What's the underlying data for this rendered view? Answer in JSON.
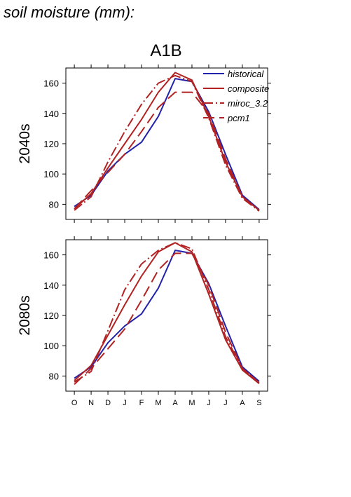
{
  "page": {
    "title": "soil moisture (mm):"
  },
  "colors": {
    "historical": "#2222aa",
    "projection": "#b22222",
    "axis": "#000000"
  },
  "chart_data": {
    "type": "line",
    "scenario": "A1B",
    "months": [
      "O",
      "N",
      "D",
      "J",
      "F",
      "M",
      "A",
      "M",
      "J",
      "J",
      "A",
      "S"
    ],
    "ylim": [
      70,
      170
    ],
    "yticks": [
      80,
      100,
      120,
      140,
      160
    ],
    "grid": false,
    "legend_placement": "top-right",
    "panels": [
      {
        "label": "2040s",
        "series": [
          {
            "name": "historical",
            "style": "solid",
            "color": "#2222aa",
            "values": [
              78.5,
              86,
              102,
              113,
              121,
              138,
              163,
              161,
              141,
              113,
              86,
              76.5
            ]
          },
          {
            "name": "composite",
            "style": "solid",
            "color": "#b22222",
            "values": [
              77,
              87,
              104,
              120,
              136,
              154,
              167,
              162,
              138,
              108,
              85,
              76
            ]
          },
          {
            "name": "miroc_3.2",
            "style": "dashdot",
            "color": "#b22222",
            "values": [
              76,
              85,
              108,
              128,
              146,
              160,
              165,
              161,
              137,
              106,
              84,
              75.5
            ]
          },
          {
            "name": "pcm1",
            "style": "longdash",
            "color": "#b22222",
            "values": [
              77,
              89,
              101,
              113,
              128,
              144,
              154,
              154,
              140,
              110,
              85,
              76
            ]
          }
        ]
      },
      {
        "label": "2080s",
        "series": [
          {
            "name": "historical",
            "style": "solid",
            "color": "#2222aa",
            "values": [
              78.5,
              86,
              102,
              113,
              121,
              138,
              163,
              161,
              141,
              113,
              86,
              76.5
            ]
          },
          {
            "name": "composite",
            "style": "solid",
            "color": "#b22222",
            "values": [
              77,
              87,
              107,
              127,
              146,
              162,
              168,
              162,
              134,
              104,
              84,
              75
            ]
          },
          {
            "name": "miroc_3.2",
            "style": "dashdot",
            "color": "#b22222",
            "values": [
              76,
              83,
              110,
              137,
              154,
              163,
              168,
              164,
              137,
              106,
              85,
              75.5
            ]
          },
          {
            "name": "pcm1",
            "style": "longdash",
            "color": "#b22222",
            "values": [
              74.5,
              85,
              98,
              111,
              130,
              150,
              161,
              161,
              140,
              109,
              85,
              75.5
            ]
          }
        ]
      }
    ]
  }
}
